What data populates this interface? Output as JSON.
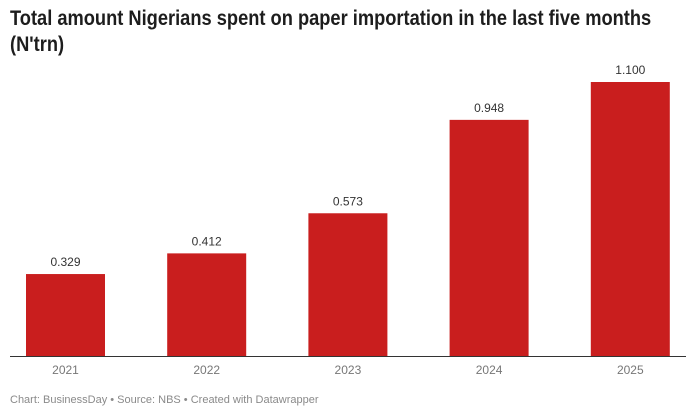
{
  "chart_data": {
    "type": "bar",
    "title": "Total amount Nigerians spent on paper importation in the last five months (N'trn)",
    "categories": [
      "2021",
      "2022",
      "2023",
      "2024",
      "2025"
    ],
    "values": [
      0.329,
      0.412,
      0.573,
      0.948,
      1.1
    ],
    "value_labels": [
      "0.329",
      "0.412",
      "0.573",
      "0.948",
      "1.100"
    ],
    "xlabel": "",
    "ylabel": "",
    "ylim": [
      0,
      1.1
    ],
    "grid": false,
    "bar_color": "#c91e1e"
  },
  "footer": "Chart: BusinessDay • Source: NBS • Created with Datawrapper"
}
